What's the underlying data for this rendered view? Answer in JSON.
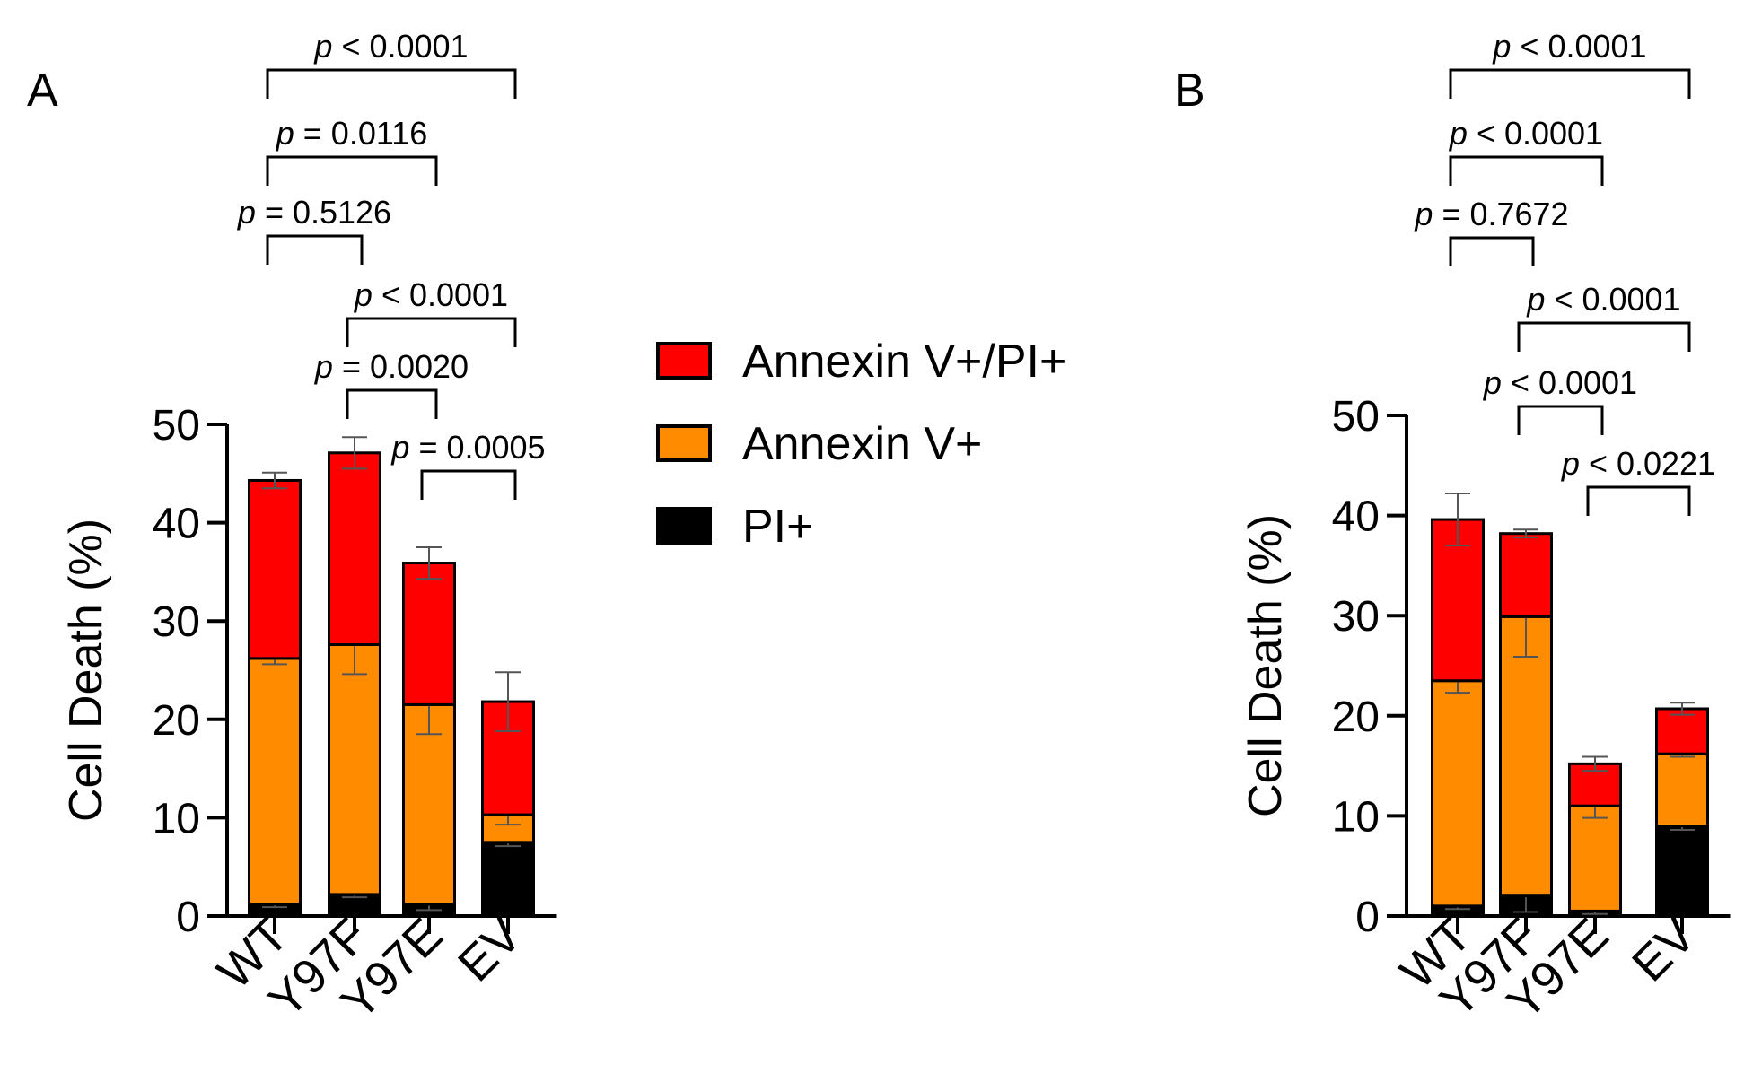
{
  "colors": {
    "pi_plus": "#000000",
    "annexin_v_plus": "#ff8c00",
    "annexin_v_pi_plus": "#ff0000",
    "outline": "#000000",
    "error_bar": "#555555"
  },
  "legend": {
    "items": [
      {
        "label": "Annexin V+/PI+",
        "color": "#ff0000"
      },
      {
        "label": "Annexin V+",
        "color": "#ff8c00"
      },
      {
        "label": "PI+",
        "color": "#000000"
      }
    ]
  },
  "chart_data": [
    {
      "type": "bar",
      "stacked": true,
      "panel_label": "A",
      "categories": [
        "WT",
        "Y97F",
        "Y97E",
        "EV"
      ],
      "ylabel": "Cell Death (%)",
      "ylim": [
        0,
        50
      ],
      "yticks": [
        0,
        10,
        20,
        30,
        40,
        50
      ],
      "series": [
        {
          "name": "PI+",
          "values": [
            1.2,
            2.2,
            1.2,
            7.5
          ],
          "errors": [
            0.3,
            0.3,
            0.6,
            0.4
          ]
        },
        {
          "name": "Annexin V+",
          "values": [
            25.0,
            25.4,
            20.3,
            2.8
          ],
          "errors": [
            0.6,
            3.0,
            3.0,
            1.0
          ]
        },
        {
          "name": "Annexin V+/PI+",
          "values": [
            18.1,
            19.5,
            14.4,
            11.5
          ],
          "errors": [
            0.8,
            1.6,
            1.6,
            3.0
          ]
        }
      ],
      "comparisons": [
        {
          "from": 0,
          "to": 3,
          "p_prefix": "p",
          "p_text": " < 0.0001"
        },
        {
          "from": 0,
          "to": 2,
          "p_prefix": "p",
          "p_text": " = 0.0116"
        },
        {
          "from": 0,
          "to": 1,
          "p_prefix": "p",
          "p_text": " = 0.5126"
        },
        {
          "from": 1,
          "to": 3,
          "p_prefix": "p",
          "p_text": " < 0.0001"
        },
        {
          "from": 1,
          "to": 2,
          "p_prefix": "p",
          "p_text": " = 0.0020"
        },
        {
          "from": 2,
          "to": 3,
          "p_prefix": "p",
          "p_text": " = 0.0005"
        }
      ]
    },
    {
      "type": "bar",
      "stacked": true,
      "panel_label": "B",
      "categories": [
        "WT",
        "Y97F",
        "Y97E",
        "EV"
      ],
      "ylabel": "Cell Death (%)",
      "ylim": [
        0,
        50
      ],
      "yticks": [
        0,
        10,
        20,
        30,
        40,
        50
      ],
      "series": [
        {
          "name": "PI+",
          "values": [
            1.0,
            2.0,
            0.5,
            9.0
          ],
          "errors": [
            0.3,
            1.6,
            0.3,
            0.4
          ]
        },
        {
          "name": "Annexin V+",
          "values": [
            22.5,
            27.9,
            10.5,
            7.2
          ],
          "errors": [
            1.2,
            4.0,
            1.2,
            0.3
          ]
        },
        {
          "name": "Annexin V+/PI+",
          "values": [
            16.1,
            8.3,
            4.2,
            4.5
          ],
          "errors": [
            2.6,
            0.4,
            0.7,
            0.6
          ]
        }
      ],
      "comparisons": [
        {
          "from": 0,
          "to": 3,
          "p_prefix": "p",
          "p_text": " < 0.0001"
        },
        {
          "from": 0,
          "to": 2,
          "p_prefix": "p",
          "p_text": " < 0.0001"
        },
        {
          "from": 0,
          "to": 1,
          "p_prefix": "p",
          "p_text": " = 0.7672"
        },
        {
          "from": 1,
          "to": 3,
          "p_prefix": "p",
          "p_text": " < 0.0001"
        },
        {
          "from": 1,
          "to": 2,
          "p_prefix": "p",
          "p_text": " < 0.0001"
        },
        {
          "from": 2,
          "to": 3,
          "p_prefix": "p",
          "p_text": " < 0.0221"
        }
      ]
    }
  ]
}
